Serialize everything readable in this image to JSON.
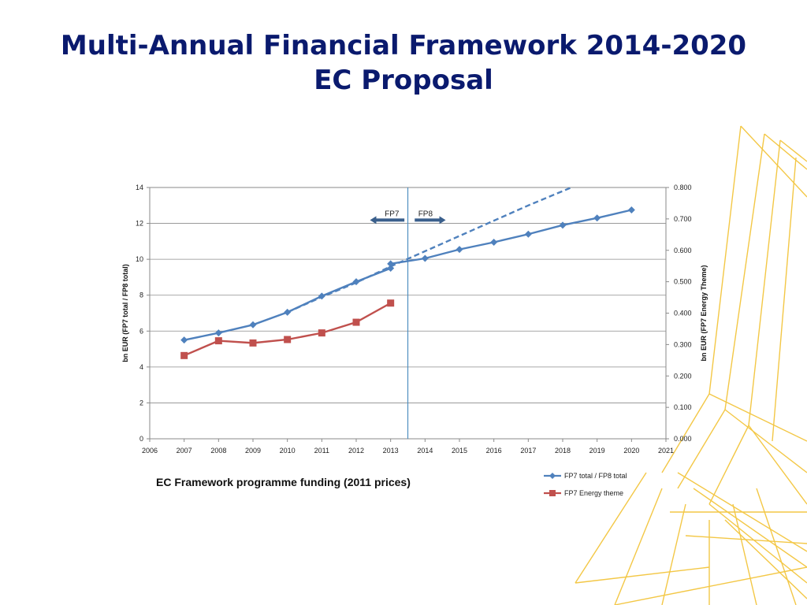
{
  "slide": {
    "title_line1": "Multi-Annual Financial Framework 2014-2020",
    "title_line2": "EC Proposal"
  },
  "colors": {
    "title": "#0a1a6e",
    "series_total": "#4f81bd",
    "series_energy": "#c0504d",
    "divider": "#4f8fc0",
    "phase_arrow": "#3a5f8c",
    "decor_lines": "#f2c232"
  },
  "chart_data": {
    "type": "line",
    "caption": "EC Framework programme funding (2011 prices)",
    "x_ticks": [
      "2006",
      "2007",
      "2008",
      "2009",
      "2010",
      "2011",
      "2012",
      "2013",
      "2014",
      "2015",
      "2016",
      "2017",
      "2018",
      "2019",
      "2020",
      "2021"
    ],
    "xlim": [
      2006,
      2021
    ],
    "y_left": {
      "label": "bn EUR (FP7 total / FP8 total)",
      "ylim": [
        0,
        14
      ],
      "ticks": [
        "0",
        "2",
        "4",
        "6",
        "8",
        "10",
        "12",
        "14"
      ]
    },
    "y_right": {
      "label": "bn EUR (FP7 Energy Theme)",
      "ylim": [
        0,
        0.8
      ],
      "ticks": [
        "0.000",
        "0.100",
        "0.200",
        "0.300",
        "0.400",
        "0.500",
        "0.600",
        "0.700",
        "0.800"
      ]
    },
    "grid": true,
    "legend_position": "bottom-right",
    "series": [
      {
        "name": "FP7 total / FP8 total",
        "axis": "left",
        "marker": "diamond",
        "x": [
          2007,
          2008,
          2009,
          2010,
          2011,
          2012,
          2013,
          2013,
          2014,
          2015,
          2016,
          2017,
          2018,
          2019,
          2020
        ],
        "values": [
          5.5,
          5.9,
          6.35,
          7.05,
          7.95,
          8.75,
          9.5,
          9.75,
          10.05,
          10.55,
          10.95,
          11.4,
          11.9,
          12.3,
          12.75
        ]
      },
      {
        "name": "FP7 Energy theme",
        "axis": "right",
        "marker": "square",
        "x": [
          2007,
          2008,
          2009,
          2010,
          2011,
          2012,
          2013
        ],
        "values": [
          0.265,
          0.312,
          0.305,
          0.316,
          0.337,
          0.371,
          0.432
        ]
      },
      {
        "name": "",
        "axis": "left",
        "style": "dashed",
        "x": [
          2010,
          2011,
          2012,
          2013,
          2014,
          2015,
          2016,
          2017,
          2018.25
        ],
        "values": [
          7.05,
          7.9,
          8.7,
          9.6,
          10.45,
          11.3,
          12.15,
          13.0,
          14.0
        ]
      }
    ],
    "divider_x": 2013.5,
    "phases": [
      {
        "label": "FP7",
        "direction": "left",
        "x_from": 2012.4,
        "x_to": 2013.4
      },
      {
        "label": "FP8",
        "direction": "right",
        "x_from": 2013.7,
        "x_to": 2014.6
      }
    ],
    "phase_y": 12.8
  }
}
